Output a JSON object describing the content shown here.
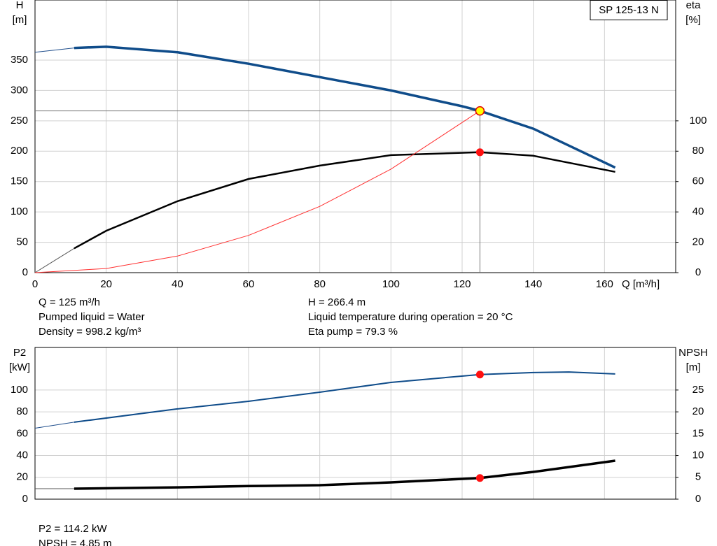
{
  "chart_data": [
    {
      "type": "line",
      "label_box": "SP 125-13 N",
      "y_label": "H",
      "y_unit": "[m]",
      "y2_label": "eta",
      "y2_unit": "[%]",
      "x_label": "Q [m³/h]",
      "xlim": [
        0,
        180
      ],
      "xticks": [
        0,
        20,
        40,
        60,
        80,
        100,
        120,
        140,
        160
      ],
      "ylim": [
        0,
        449
      ],
      "yticks": [
        0,
        50,
        100,
        150,
        200,
        250,
        300,
        350
      ],
      "y2lim": [
        0,
        179.6
      ],
      "y2ticks": [
        0,
        20,
        40,
        60,
        80,
        100
      ],
      "series": [
        {
          "color": "#1f4e8c",
          "width": 1,
          "x": [
            0,
            11
          ],
          "values": [
            363,
            370
          ]
        },
        {
          "color": "#0f4c8a",
          "width": 3.5,
          "x": [
            11,
            20,
            40,
            60,
            80,
            100,
            120,
            125,
            140,
            163
          ],
          "values": [
            370,
            372,
            363,
            344,
            322,
            300,
            274,
            266.4,
            237,
            173
          ]
        },
        {
          "color": "#555555",
          "width": 1,
          "axis": "y2",
          "x": [
            0,
            11
          ],
          "values": [
            0,
            16
          ]
        },
        {
          "color": "#000000",
          "width": 2.5,
          "axis": "y2",
          "x": [
            11,
            20,
            40,
            60,
            80,
            100,
            125,
            140,
            163
          ],
          "values": [
            16,
            27.6,
            47,
            61.7,
            70.5,
            77.4,
            79.3,
            77,
            66.4
          ]
        },
        {
          "color": "#ff3030",
          "width": 1,
          "x": [
            0,
            20,
            40,
            60,
            80,
            100,
            125
          ],
          "values": [
            0,
            6.8,
            27.3,
            61.4,
            109.1,
            170.5,
            266.4
          ]
        }
      ],
      "duty_point": {
        "x": 125,
        "y": 266.4,
        "y2": 79.3
      },
      "info_left": [
        "Q = 125 m³/h",
        "Pumped liquid = Water",
        "Density = 998.2 kg/m³"
      ],
      "info_right": [
        "H = 266.4 m",
        "Liquid temperature during operation = 20 °C",
        "Eta pump = 79.3 %"
      ]
    },
    {
      "type": "line",
      "y_label": "P2",
      "y_unit": "[kW]",
      "y2_label": "NPSH",
      "y2_unit": "[m]",
      "xlim": [
        0,
        180
      ],
      "ylim": [
        0,
        139
      ],
      "yticks": [
        0,
        20,
        40,
        60,
        80,
        100
      ],
      "y2lim": [
        0,
        34.75
      ],
      "y2ticks": [
        0,
        5,
        10,
        15,
        20,
        25
      ],
      "series": [
        {
          "color": "#1f4e8c",
          "width": 1,
          "x": [
            0,
            11
          ],
          "values": [
            65,
            70.5
          ]
        },
        {
          "color": "#0f4c8a",
          "width": 2,
          "x": [
            11,
            40,
            60,
            80,
            100,
            125,
            140,
            150,
            163
          ],
          "values": [
            70.5,
            82.7,
            89.7,
            98,
            107,
            114.2,
            116,
            116.5,
            114.7
          ]
        },
        {
          "color": "#555555",
          "width": 1,
          "axis": "y2",
          "x": [
            0,
            11
          ],
          "values": [
            2.4,
            2.4
          ]
        },
        {
          "color": "#000000",
          "width": 3.5,
          "axis": "y2",
          "x": [
            11,
            40,
            60,
            80,
            100,
            125,
            140,
            163
          ],
          "values": [
            2.4,
            2.7,
            3,
            3.2,
            3.85,
            4.85,
            6.25,
            8.8
          ]
        }
      ],
      "duty_point": {
        "x": 125,
        "y": 114.2,
        "y2": 4.85
      },
      "info_left": [
        "P2 = 114.2 kW",
        "NPSH = 4.85 m"
      ]
    }
  ]
}
